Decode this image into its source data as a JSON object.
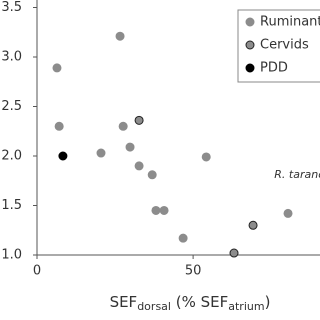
{
  "chart_data": {
    "type": "scatter",
    "xlabel_parts": [
      "SEF",
      "dorsal",
      " (% SEF",
      "atrium",
      ")"
    ],
    "xlim": [
      0,
      90
    ],
    "ylim": [
      1.0,
      3.6
    ],
    "xticks": [
      0,
      50
    ],
    "yticks": [
      {
        "value": 1.0,
        "label": "1.0"
      },
      {
        "value": 1.5,
        "label": "1.5"
      },
      {
        "value": 2.0,
        "label": "2.0"
      },
      {
        "value": 2.5,
        "label": "2.5"
      },
      {
        "value": 3.0,
        "label": "3.0"
      },
      {
        "value": 3.5,
        "label": "3.5"
      }
    ],
    "legend": "top-right",
    "annotations": [
      {
        "text": "R. tarandus",
        "x": 76,
        "y": 1.81
      }
    ],
    "series": [
      {
        "name": "Ruminants",
        "color": "#8c8c8c",
        "edge": "#8c8c8c",
        "x": [
          6.4,
          26.6,
          7.1,
          27.6,
          20.5,
          29.8,
          32.7,
          36.9,
          38.1,
          40.7,
          54.2,
          46.8,
          80.4
        ],
        "values": [
          2.89,
          3.21,
          2.3,
          2.3,
          2.03,
          2.09,
          1.9,
          1.81,
          1.45,
          1.45,
          1.99,
          1.17,
          1.42
        ]
      },
      {
        "name": "Cervids",
        "color": "#8c8c8c",
        "edge": "#222222",
        "x": [
          32.7,
          69.2,
          63.1
        ],
        "values": [
          2.36,
          1.3,
          1.02
        ]
      },
      {
        "name": "PDD",
        "color": "#000000",
        "edge": "#000000",
        "x": [
          8.3
        ],
        "values": [
          2.0
        ]
      }
    ]
  }
}
